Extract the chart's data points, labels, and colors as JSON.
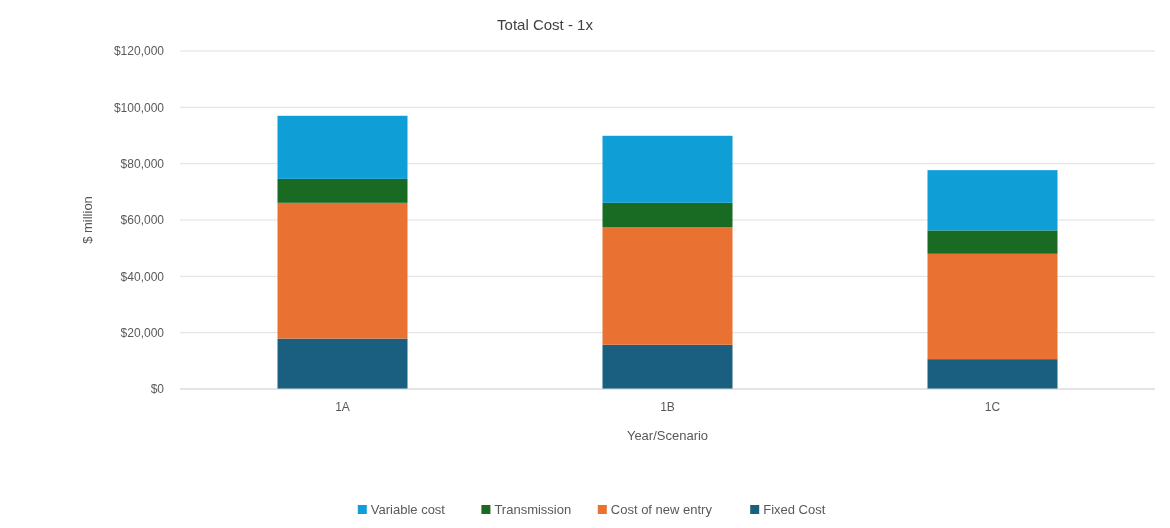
{
  "chart_data": {
    "type": "bar",
    "title": "Total Cost - 1x",
    "xlabel": "Year/Scenario",
    "ylabel": "$ million",
    "categories": [
      "1A",
      "1B",
      "1C"
    ],
    "stacked": true,
    "series": [
      {
        "name": "Fixed Cost",
        "color": "#1a5e80",
        "values": [
          17900,
          15700,
          10600
        ]
      },
      {
        "name": "Cost of new entry",
        "color": "#e97132",
        "values": [
          48200,
          41800,
          37400
        ]
      },
      {
        "name": "Transmission",
        "color": "#196b24",
        "values": [
          8500,
          8600,
          8300
        ]
      },
      {
        "name": "Variable cost",
        "color": "#0f9ed5",
        "values": [
          22400,
          23800,
          21400
        ]
      }
    ],
    "ylim": [
      0,
      120000
    ],
    "yticks": [
      {
        "value": 0,
        "label": "$0"
      },
      {
        "value": 20000,
        "label": "$20,000"
      },
      {
        "value": 40000,
        "label": "$40,000"
      },
      {
        "value": 60000,
        "label": "$60,000"
      },
      {
        "value": 80000,
        "label": "$80,000"
      },
      {
        "value": 100000,
        "label": "$100,000"
      },
      {
        "value": 120000,
        "label": "$120,000"
      }
    ],
    "grid": "y",
    "legend": "bottom"
  }
}
